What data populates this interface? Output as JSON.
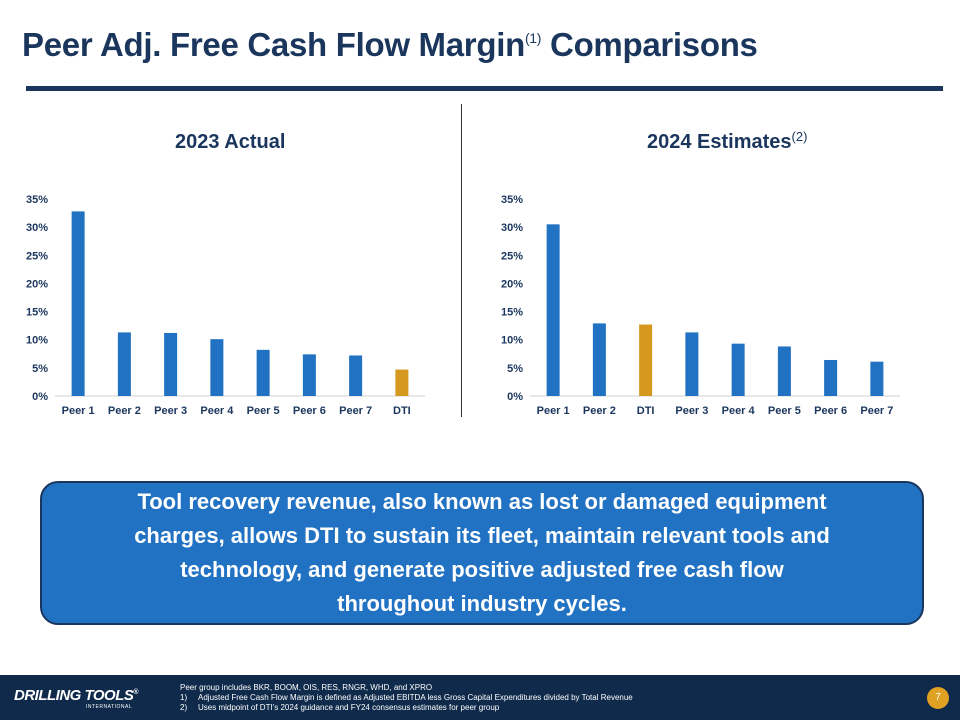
{
  "title": {
    "text": "Peer Adj. Free Cash Flow Margin",
    "superscript": "(1)",
    "suffix": "Comparisons"
  },
  "chart_data": [
    {
      "type": "bar",
      "title": "2023 Actual",
      "title_superscript": "",
      "categories": [
        "Peer 1",
        "Peer 2",
        "Peer 3",
        "Peer 4",
        "Peer 5",
        "Peer 6",
        "Peer 7",
        "DTI"
      ],
      "values": [
        32.8,
        11.3,
        11.2,
        10.1,
        8.2,
        7.4,
        7.2,
        4.7
      ],
      "highlight": "DTI",
      "ylim": [
        0,
        35
      ],
      "yticks": [
        "0%",
        "5%",
        "10%",
        "15%",
        "20%",
        "25%",
        "30%",
        "35%"
      ],
      "grid": false,
      "colors": {
        "bar": "#2272c3",
        "highlight": "#d4991e"
      }
    },
    {
      "type": "bar",
      "title": "2024 Estimates",
      "title_superscript": "(2)",
      "categories": [
        "Peer 1",
        "Peer 2",
        "DTI",
        "Peer 3",
        "Peer 4",
        "Peer 5",
        "Peer 6",
        "Peer 7"
      ],
      "values": [
        30.5,
        12.9,
        12.7,
        11.3,
        9.3,
        8.8,
        6.4,
        6.1
      ],
      "highlight": "DTI",
      "ylim": [
        0,
        35
      ],
      "yticks": [
        "0%",
        "5%",
        "10%",
        "15%",
        "20%",
        "25%",
        "30%",
        "35%"
      ],
      "grid": false,
      "colors": {
        "bar": "#2272c3",
        "highlight": "#d4991e"
      }
    }
  ],
  "callout": {
    "lines": [
      "Tool recovery revenue, also known as lost or damaged equipment",
      "charges, allows DTI to sustain its fleet, maintain relevant tools and",
      "technology, and generate positive adjusted free cash flow",
      "throughout industry cycles."
    ]
  },
  "footer": {
    "logo": "DRILLING TOOLS",
    "logo_mark": "®",
    "logo_sub": "INTERNATIONAL",
    "notes": {
      "peer_group": "Peer group includes BKR, BOOM, OIS, RES, RNGR, WHD, and XPRO",
      "items": [
        {
          "num": "1)",
          "text": "Adjusted Free Cash Flow Margin is defined as Adjusted EBITDA less Gross Capital Expenditures divided by Total Revenue"
        },
        {
          "num": "2)",
          "text": "Uses midpoint of DTI's 2024 guidance and FY24 consensus estimates for peer group"
        }
      ]
    },
    "page_number": "7"
  }
}
